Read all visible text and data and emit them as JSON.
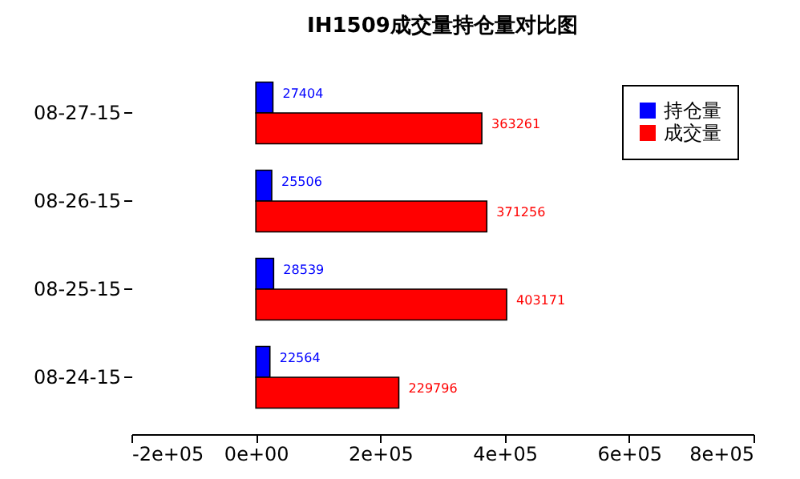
{
  "chart_data": {
    "type": "bar",
    "orientation": "horizontal",
    "title": "IH1509成交量持仓量对比图",
    "categories": [
      "08-27-15",
      "08-26-15",
      "08-25-15",
      "08-24-15"
    ],
    "series": [
      {
        "name": "持仓量",
        "color": "#0000ff",
        "values": [
          27404,
          25506,
          28539,
          22564
        ]
      },
      {
        "name": "成交量",
        "color": "#ff0000",
        "values": [
          363261,
          371256,
          403171,
          229796
        ]
      }
    ],
    "xlim": [
      -200000,
      800000
    ],
    "xticks": [
      {
        "value": -200000,
        "label": "-2e+05"
      },
      {
        "value": 0,
        "label": "0e+00"
      },
      {
        "value": 200000,
        "label": "2e+05"
      },
      {
        "value": 400000,
        "label": "4e+05"
      },
      {
        "value": 600000,
        "label": "6e+05"
      },
      {
        "value": 800000,
        "label": "8e+05"
      }
    ],
    "data_labels": true,
    "legend": "top right",
    "grid": false
  }
}
